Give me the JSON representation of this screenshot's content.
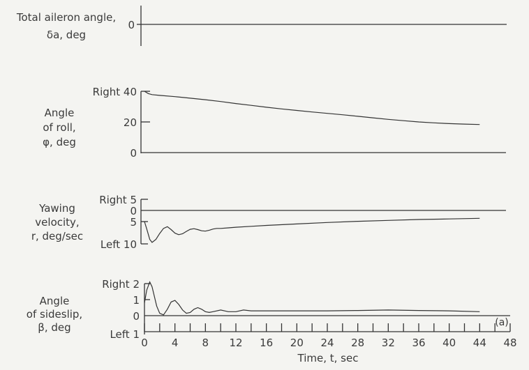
{
  "chart_data": [
    {
      "type": "line",
      "ylabel": [
        "Total aileron angle,",
        "δa, deg"
      ],
      "y_ticks": [
        {
          "value": 0,
          "label": "0"
        }
      ],
      "ylim": [
        -1,
        1
      ],
      "series": [
        {
          "x": [
            0,
            48
          ],
          "y": [
            0,
            0
          ]
        }
      ]
    },
    {
      "type": "line",
      "ylabel": [
        "Angle",
        "of roll,",
        "φ, deg"
      ],
      "y_ticks": [
        {
          "value": 40,
          "label": "Right 40"
        },
        {
          "value": 20,
          "label": "20"
        },
        {
          "value": 0,
          "label": "0"
        }
      ],
      "ylim": [
        0,
        40
      ],
      "series": [
        {
          "x": [
            0,
            0.5,
            1,
            2,
            4,
            6,
            8,
            10,
            12,
            14,
            16,
            18,
            20,
            22,
            24,
            26,
            28,
            30,
            32,
            34,
            36,
            38,
            40,
            42,
            44
          ],
          "y": [
            40,
            38.5,
            37.8,
            37.3,
            36.5,
            35.5,
            34.5,
            33.3,
            32,
            30.8,
            29.6,
            28.5,
            27.5,
            26.5,
            25.6,
            24.7,
            23.7,
            22.7,
            21.7,
            20.8,
            20,
            19.4,
            18.9,
            18.6,
            18.3
          ]
        }
      ]
    },
    {
      "type": "line",
      "ylabel": [
        "Yawing",
        "velocity,",
        "r, deg/sec"
      ],
      "y_ticks": [
        {
          "value": 5,
          "label": "Right 5"
        },
        {
          "value": 0,
          "label": "0"
        },
        {
          "value": -5,
          "label": "5"
        },
        {
          "value": -10,
          "label": "Left 10"
        }
      ],
      "ylim": [
        -10,
        5
      ],
      "series": [
        {
          "x": [
            0,
            0.3,
            0.7,
            1,
            1.5,
            2,
            2.5,
            3,
            3.5,
            4,
            4.5,
            5,
            5.5,
            6,
            6.5,
            7,
            7.5,
            8,
            8.5,
            9,
            9.5,
            10,
            11,
            12,
            14,
            16,
            20,
            24,
            28,
            32,
            36,
            40,
            44
          ],
          "y": [
            -2.5,
            -5,
            -8.5,
            -9.5,
            -8.5,
            -6.5,
            -4.8,
            -4.2,
            -5.2,
            -6.4,
            -6.9,
            -6.6,
            -5.8,
            -5.1,
            -4.9,
            -5.2,
            -5.6,
            -5.7,
            -5.4,
            -5,
            -4.8,
            -4.8,
            -4.6,
            -4.4,
            -4.1,
            -3.8,
            -3.3,
            -2.8,
            -2.4,
            -2.1,
            -1.8,
            -1.6,
            -1.4
          ]
        }
      ]
    },
    {
      "type": "line",
      "ylabel": [
        "Angle",
        "of sideslip,",
        "β, deg"
      ],
      "y_ticks": [
        {
          "value": 2,
          "label": "Right 2"
        },
        {
          "value": 1,
          "label": "1"
        },
        {
          "value": 0,
          "label": "0"
        },
        {
          "value": -1,
          "label": "Left 1"
        }
      ],
      "ylim": [
        -1,
        2
      ],
      "series": [
        {
          "x": [
            0,
            0.3,
            0.7,
            1,
            1.3,
            1.6,
            2,
            2.5,
            3,
            3.5,
            4,
            4.5,
            5,
            5.5,
            6,
            6.5,
            7,
            7.5,
            8,
            8.5,
            9,
            10,
            11,
            12,
            13,
            14,
            16,
            20,
            24,
            28,
            32,
            36,
            40,
            44
          ],
          "y": [
            0.8,
            1.6,
            2.1,
            1.8,
            1.2,
            0.6,
            0.15,
            0.05,
            0.4,
            0.85,
            0.95,
            0.7,
            0.35,
            0.15,
            0.2,
            0.4,
            0.5,
            0.4,
            0.25,
            0.2,
            0.25,
            0.35,
            0.25,
            0.25,
            0.35,
            0.3,
            0.3,
            0.3,
            0.3,
            0.32,
            0.35,
            0.32,
            0.3,
            0.25
          ]
        }
      ]
    }
  ],
  "x_axis": {
    "label": "Time, t, sec",
    "ticks": [
      "0",
      "4",
      "8",
      "12",
      "16",
      "20",
      "24",
      "28",
      "32",
      "36",
      "40",
      "44",
      "48"
    ]
  },
  "annotation": "(a)"
}
